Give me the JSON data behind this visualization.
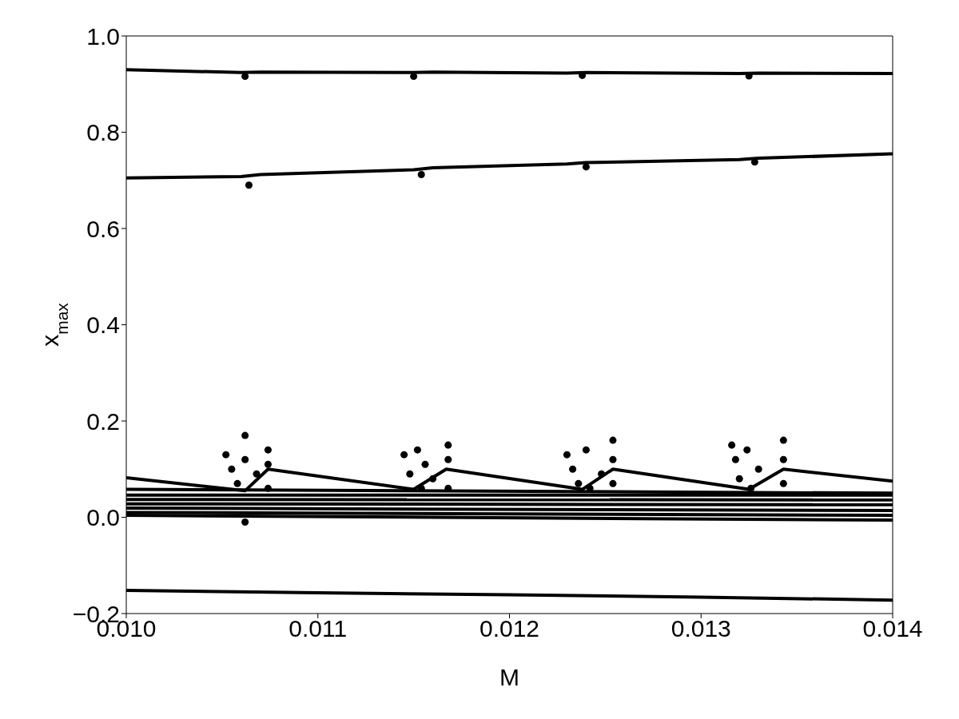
{
  "chart_data": {
    "type": "line",
    "xlabel": "M",
    "ylabel": "x$_{max}$",
    "xlim": [
      0.01,
      0.014
    ],
    "ylim": [
      -0.2,
      1.0
    ],
    "xticks": [
      {
        "value": 0.01,
        "label": "0.010"
      },
      {
        "value": 0.011,
        "label": "0.011"
      },
      {
        "value": 0.012,
        "label": "0.012"
      },
      {
        "value": 0.013,
        "label": "0.013"
      },
      {
        "value": 0.014,
        "label": "0.014"
      }
    ],
    "yticks": [
      {
        "value": -0.2,
        "label": "−0.2"
      },
      {
        "value": 0.0,
        "label": "0.0"
      },
      {
        "value": 0.2,
        "label": "0.2"
      },
      {
        "value": 0.4,
        "label": "0.4"
      },
      {
        "value": 0.6,
        "label": "0.6"
      },
      {
        "value": 0.8,
        "label": "0.8"
      },
      {
        "value": 1.0,
        "label": "1.0"
      }
    ],
    "grid": false,
    "line_style": "solid",
    "series": [
      {
        "color": "#000000",
        "x": [
          0.01,
          0.0106,
          0.0107,
          0.0115,
          0.0116,
          0.0123,
          0.0124,
          0.0132,
          0.0133,
          0.014
        ],
        "values": [
          0.93,
          0.924,
          0.925,
          0.924,
          0.925,
          0.923,
          0.924,
          0.922,
          0.923,
          0.922
        ]
      },
      {
        "color": "#000000",
        "x": [
          0.01,
          0.0106,
          0.0107,
          0.0115,
          0.0116,
          0.0123,
          0.0124,
          0.0132,
          0.0133,
          0.014
        ],
        "values": [
          0.705,
          0.708,
          0.712,
          0.722,
          0.726,
          0.734,
          0.737,
          0.743,
          0.746,
          0.755
        ]
      },
      {
        "color": "#000000",
        "x": [
          0.01,
          0.01062,
          0.01074,
          0.0115,
          0.01167,
          0.01238,
          0.01254,
          0.01325,
          0.01343,
          0.014
        ],
        "values": [
          0.082,
          0.055,
          0.1,
          0.058,
          0.1,
          0.058,
          0.1,
          0.058,
          0.1,
          0.075
        ]
      },
      {
        "color": "#000000",
        "x": [
          0.01,
          0.014
        ],
        "values": [
          0.058,
          0.05
        ]
      },
      {
        "color": "#000000",
        "x": [
          0.01,
          0.014
        ],
        "values": [
          0.046,
          0.046
        ]
      },
      {
        "color": "#000000",
        "x": [
          0.01,
          0.014
        ],
        "values": [
          0.037,
          0.036
        ]
      },
      {
        "color": "#000000",
        "x": [
          0.01,
          0.014
        ],
        "values": [
          0.028,
          0.026
        ]
      },
      {
        "color": "#000000",
        "x": [
          0.01,
          0.014
        ],
        "values": [
          0.019,
          0.014
        ]
      },
      {
        "color": "#000000",
        "x": [
          0.01,
          0.014
        ],
        "values": [
          0.01,
          0.004
        ]
      },
      {
        "color": "#000000",
        "x": [
          0.01,
          0.014
        ],
        "values": [
          0.004,
          -0.006
        ]
      },
      {
        "color": "#000000",
        "x": [
          0.01,
          0.011,
          0.012,
          0.013,
          0.014
        ],
        "values": [
          -0.152,
          -0.157,
          -0.161,
          -0.166,
          -0.172
        ]
      },
      {
        "type": "scatter",
        "marker": "circle",
        "color": "#000000",
        "x": [
          0.01052,
          0.01055,
          0.01058,
          0.01062,
          0.01062,
          0.01062,
          0.01068,
          0.01074,
          0.01074,
          0.01074,
          0.01145,
          0.01148,
          0.01152,
          0.01154,
          0.01156,
          0.0116,
          0.01168,
          0.01168,
          0.01168,
          0.0123,
          0.01233,
          0.01236,
          0.0124,
          0.01242,
          0.01248,
          0.01254,
          0.01254,
          0.01254,
          0.01316,
          0.01318,
          0.0132,
          0.01324,
          0.01326,
          0.0133,
          0.01343,
          0.01343,
          0.01343,
          0.01062,
          0.0115,
          0.01238,
          0.01325,
          0.01064,
          0.01154,
          0.0124,
          0.01328
        ],
        "values": [
          0.13,
          0.1,
          0.07,
          0.17,
          0.12,
          -0.01,
          0.09,
          0.14,
          0.06,
          0.11,
          0.13,
          0.09,
          0.14,
          0.06,
          0.11,
          0.08,
          0.15,
          0.12,
          0.06,
          0.13,
          0.1,
          0.07,
          0.14,
          0.06,
          0.09,
          0.16,
          0.12,
          0.07,
          0.15,
          0.12,
          0.08,
          0.14,
          0.06,
          0.1,
          0.16,
          0.12,
          0.07,
          0.916,
          0.916,
          0.918,
          0.917,
          0.69,
          0.712,
          0.728,
          0.738
        ]
      }
    ]
  }
}
